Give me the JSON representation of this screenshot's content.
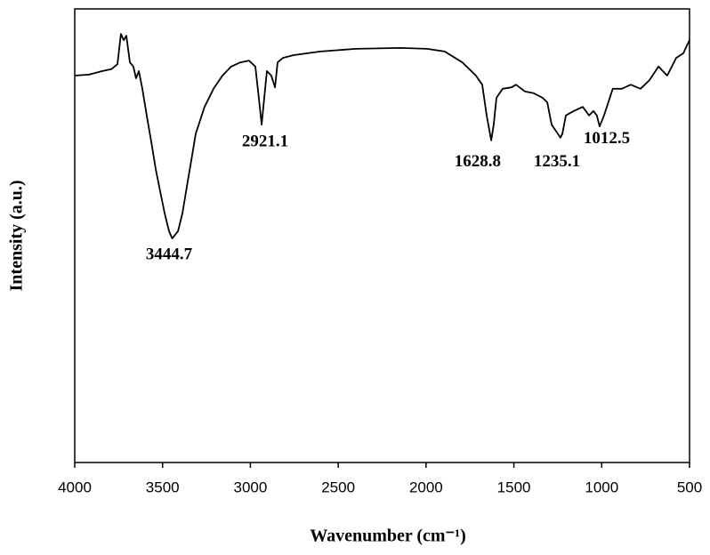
{
  "chart_data": {
    "type": "line",
    "xlabel": "Wavenumber (cm⁻¹)",
    "ylabel": "Intensity (a.u.)",
    "xlim": [
      4000,
      500
    ],
    "ylim": [
      0,
      100
    ],
    "xticks": [
      4000,
      3500,
      3000,
      2500,
      2000,
      1500,
      1000,
      500
    ],
    "yticks": [],
    "series": [
      {
        "color": "#000000",
        "x": [
          4000,
          3919,
          3843,
          3792,
          3757,
          3737,
          3721,
          3706,
          3686,
          3666,
          3651,
          3635,
          3615,
          3590,
          3564,
          3539,
          3514,
          3488,
          3463,
          3445,
          3412,
          3387,
          3362,
          3336,
          3311,
          3261,
          3210,
          3159,
          3109,
          3058,
          3008,
          2972,
          2952,
          2936,
          2921,
          2906,
          2881,
          2860,
          2845,
          2815,
          2754,
          2602,
          2400,
          2146,
          1994,
          1894,
          1793,
          1716,
          1680,
          1655,
          1629,
          1615,
          1599,
          1564,
          1513,
          1488,
          1437,
          1386,
          1336,
          1310,
          1285,
          1235,
          1224,
          1204,
          1159,
          1108,
          1072,
          1047,
          1028,
          1012,
          987,
          937,
          886,
          835,
          779,
          728,
          677,
          627,
          576,
          536,
          500
        ],
        "values": [
          85.3,
          85.5,
          86.3,
          86.7,
          87.8,
          94.5,
          93.1,
          94.1,
          88.2,
          87.3,
          84.7,
          86.3,
          82.4,
          76.5,
          70.6,
          64.7,
          59.8,
          54.9,
          51.0,
          49.4,
          51.0,
          54.9,
          60.8,
          66.7,
          72.5,
          78.4,
          82.4,
          85.3,
          87.3,
          88.2,
          88.6,
          87.3,
          80.4,
          74.5,
          80.4,
          86.3,
          85.3,
          82.7,
          88.2,
          89.2,
          89.8,
          90.6,
          91.2,
          91.4,
          91.2,
          90.6,
          88.2,
          85.3,
          83.3,
          76.5,
          71.0,
          74.5,
          80.4,
          82.4,
          82.7,
          83.3,
          81.8,
          81.4,
          80.4,
          79.4,
          74.5,
          71.6,
          72.5,
          76.5,
          77.5,
          78.4,
          76.5,
          77.5,
          76.5,
          74.1,
          76.5,
          82.4,
          82.4,
          83.3,
          82.4,
          84.3,
          87.3,
          85.3,
          89.2,
          90.2,
          93.1
        ]
      }
    ],
    "annotations": [
      {
        "text": "3444.7",
        "x": 3463,
        "y": 45.7
      },
      {
        "text": "2921.1",
        "x": 2916,
        "y": 70.6
      },
      {
        "text": "1628.8",
        "x": 1706,
        "y": 66.1
      },
      {
        "text": "1235.1",
        "x": 1255,
        "y": 66.1
      },
      {
        "text": "1012.5",
        "x": 971,
        "y": 71.2
      }
    ]
  }
}
